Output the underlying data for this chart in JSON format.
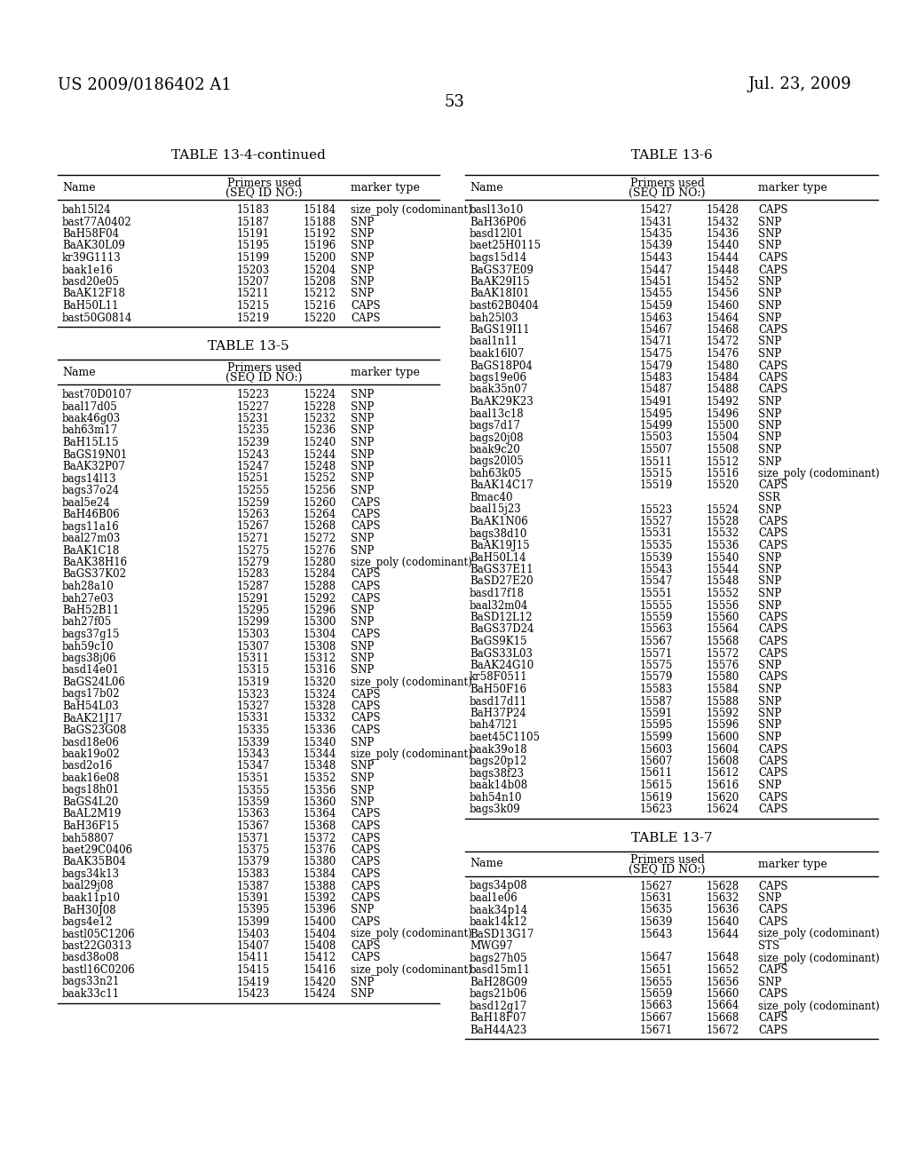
{
  "header_left": "US 2009/0186402 A1",
  "header_right": "Jul. 23, 2009",
  "page_number": "53",
  "table_13_4_continued": {
    "title": "TABLE 13-4-continued",
    "col_headers": [
      "Name",
      "Primers used\n(SEQ ID NO:)",
      "marker type"
    ],
    "rows": [
      [
        "bah15l24",
        "15183",
        "15184",
        "size_poly (codominant)"
      ],
      [
        "bast77A0402",
        "15187",
        "15188",
        "SNP"
      ],
      [
        "BaH58F04",
        "15191",
        "15192",
        "SNP"
      ],
      [
        "BaAK30L09",
        "15195",
        "15196",
        "SNP"
      ],
      [
        "kr39G1113",
        "15199",
        "15200",
        "SNP"
      ],
      [
        "baak1e16",
        "15203",
        "15204",
        "SNP"
      ],
      [
        "basd20e05",
        "15207",
        "15208",
        "SNP"
      ],
      [
        "BaAK12F18",
        "15211",
        "15212",
        "SNP"
      ],
      [
        "BaH50L11",
        "15215",
        "15216",
        "CAPS"
      ],
      [
        "bast50G0814",
        "15219",
        "15220",
        "CAPS"
      ]
    ]
  },
  "table_13_5": {
    "title": "TABLE 13-5",
    "col_headers": [
      "Name",
      "Primers used\n(SEQ ID NO:)",
      "marker type"
    ],
    "rows": [
      [
        "bast70D0107",
        "15223",
        "15224",
        "SNP"
      ],
      [
        "baal17d05",
        "15227",
        "15228",
        "SNP"
      ],
      [
        "baak46g03",
        "15231",
        "15232",
        "SNP"
      ],
      [
        "bah63m17",
        "15235",
        "15236",
        "SNP"
      ],
      [
        "BaH15L15",
        "15239",
        "15240",
        "SNP"
      ],
      [
        "BaGS19N01",
        "15243",
        "15244",
        "SNP"
      ],
      [
        "BaAK32P07",
        "15247",
        "15248",
        "SNP"
      ],
      [
        "bags14l13",
        "15251",
        "15252",
        "SNP"
      ],
      [
        "bags37o24",
        "15255",
        "15256",
        "SNP"
      ],
      [
        "baal5e24",
        "15259",
        "15260",
        "CAPS"
      ],
      [
        "BaH46B06",
        "15263",
        "15264",
        "CAPS"
      ],
      [
        "bags11a16",
        "15267",
        "15268",
        "CAPS"
      ],
      [
        "baal27m03",
        "15271",
        "15272",
        "SNP"
      ],
      [
        "BaAK1C18",
        "15275",
        "15276",
        "SNP"
      ],
      [
        "BaAK38H16",
        "15279",
        "15280",
        "size_poly (codominant)"
      ],
      [
        "BaGS37K02",
        "15283",
        "15284",
        "CAPS"
      ],
      [
        "bah28a10",
        "15287",
        "15288",
        "CAPS"
      ],
      [
        "bah27e03",
        "15291",
        "15292",
        "CAPS"
      ],
      [
        "BaH52B11",
        "15295",
        "15296",
        "SNP"
      ],
      [
        "bah27f05",
        "15299",
        "15300",
        "SNP"
      ],
      [
        "bags37g15",
        "15303",
        "15304",
        "CAPS"
      ],
      [
        "bah59c10",
        "15307",
        "15308",
        "SNP"
      ],
      [
        "bags38j06",
        "15311",
        "15312",
        "SNP"
      ],
      [
        "basd14e01",
        "15315",
        "15316",
        "SNP"
      ],
      [
        "BaGS24L06",
        "15319",
        "15320",
        "size_poly (codominant)"
      ],
      [
        "bags17b02",
        "15323",
        "15324",
        "CAPS"
      ],
      [
        "BaH54L03",
        "15327",
        "15328",
        "CAPS"
      ],
      [
        "BaAK21J17",
        "15331",
        "15332",
        "CAPS"
      ],
      [
        "BaGS23G08",
        "15335",
        "15336",
        "CAPS"
      ],
      [
        "basd18e06",
        "15339",
        "15340",
        "SNP"
      ],
      [
        "baak19o02",
        "15343",
        "15344",
        "size_poly (codominant)"
      ],
      [
        "basd2o16",
        "15347",
        "15348",
        "SNP"
      ],
      [
        "baak16e08",
        "15351",
        "15352",
        "SNP"
      ],
      [
        "bags18h01",
        "15355",
        "15356",
        "SNP"
      ],
      [
        "BaGS4L20",
        "15359",
        "15360",
        "SNP"
      ],
      [
        "BaAL2M19",
        "15363",
        "15364",
        "CAPS"
      ],
      [
        "BaH36F15",
        "15367",
        "15368",
        "CAPS"
      ],
      [
        "bah58807",
        "15371",
        "15372",
        "CAPS"
      ],
      [
        "baet29C0406",
        "15375",
        "15376",
        "CAPS"
      ],
      [
        "BaAK35B04",
        "15379",
        "15380",
        "CAPS"
      ],
      [
        "bags34k13",
        "15383",
        "15384",
        "CAPS"
      ],
      [
        "baal29j08",
        "15387",
        "15388",
        "CAPS"
      ],
      [
        "baak11p10",
        "15391",
        "15392",
        "CAPS"
      ],
      [
        "BaH30J08",
        "15395",
        "15396",
        "SNP"
      ],
      [
        "bags4e12",
        "15399",
        "15400",
        "CAPS"
      ],
      [
        "bastl05C1206",
        "15403",
        "15404",
        "size_poly (codominant)"
      ],
      [
        "bast22G0313",
        "15407",
        "15408",
        "CAPS"
      ],
      [
        "basd38o08",
        "15411",
        "15412",
        "CAPS"
      ],
      [
        "bastl16C0206",
        "15415",
        "15416",
        "size_poly (codominant)"
      ],
      [
        "bags33n21",
        "15419",
        "15420",
        "SNP"
      ],
      [
        "baak33c11",
        "15423",
        "15424",
        "SNP"
      ]
    ]
  },
  "table_13_6": {
    "title": "TABLE 13-6",
    "col_headers": [
      "Name",
      "Primers used\n(SEQ ID NO:)",
      "marker type"
    ],
    "rows": [
      [
        "basl13o10",
        "15427",
        "15428",
        "CAPS"
      ],
      [
        "BaH36P06",
        "15431",
        "15432",
        "SNP"
      ],
      [
        "basd12l01",
        "15435",
        "15436",
        "SNP"
      ],
      [
        "baet25H0115",
        "15439",
        "15440",
        "SNP"
      ],
      [
        "bags15d14",
        "15443",
        "15444",
        "CAPS"
      ],
      [
        "BaGS37E09",
        "15447",
        "15448",
        "CAPS"
      ],
      [
        "BaAK29I15",
        "15451",
        "15452",
        "SNP"
      ],
      [
        "BaAK18I01",
        "15455",
        "15456",
        "SNP"
      ],
      [
        "bast62B0404",
        "15459",
        "15460",
        "SNP"
      ],
      [
        "bah25l03",
        "15463",
        "15464",
        "SNP"
      ],
      [
        "BaGS19I11",
        "15467",
        "15468",
        "CAPS"
      ],
      [
        "baal1n11",
        "15471",
        "15472",
        "SNP"
      ],
      [
        "baak16l07",
        "15475",
        "15476",
        "SNP"
      ],
      [
        "BaGS18P04",
        "15479",
        "15480",
        "CAPS"
      ],
      [
        "bags19e06",
        "15483",
        "15484",
        "CAPS"
      ],
      [
        "baak35n07",
        "15487",
        "15488",
        "CAPS"
      ],
      [
        "BaAK29K23",
        "15491",
        "15492",
        "SNP"
      ],
      [
        "baal13c18",
        "15495",
        "15496",
        "SNP"
      ],
      [
        "bags7d17",
        "15499",
        "15500",
        "SNP"
      ],
      [
        "bags20j08",
        "15503",
        "15504",
        "SNP"
      ],
      [
        "baak9c20",
        "15507",
        "15508",
        "SNP"
      ],
      [
        "bags20l05",
        "15511",
        "15512",
        "SNP"
      ],
      [
        "bah63k05",
        "15515",
        "15516",
        "size_poly (codominant)"
      ],
      [
        "BaAK14C17",
        "15519",
        "15520",
        "CAPS"
      ],
      [
        "Bmac40",
        "",
        "",
        "SSR"
      ],
      [
        "baal15j23",
        "15523",
        "15524",
        "SNP"
      ],
      [
        "BaAK1N06",
        "15527",
        "15528",
        "CAPS"
      ],
      [
        "bags38d10",
        "15531",
        "15532",
        "CAPS"
      ],
      [
        "BaAK19J15",
        "15535",
        "15536",
        "CAPS"
      ],
      [
        "BaH50L14",
        "15539",
        "15540",
        "SNP"
      ],
      [
        "BaGS37E11",
        "15543",
        "15544",
        "SNP"
      ],
      [
        "BaSD27E20",
        "15547",
        "15548",
        "SNP"
      ],
      [
        "basd17f18",
        "15551",
        "15552",
        "SNP"
      ],
      [
        "baal32m04",
        "15555",
        "15556",
        "SNP"
      ],
      [
        "BaSD12L12",
        "15559",
        "15560",
        "CAPS"
      ],
      [
        "BaGS37D24",
        "15563",
        "15564",
        "CAPS"
      ],
      [
        "BaGS9K15",
        "15567",
        "15568",
        "CAPS"
      ],
      [
        "BaGS33L03",
        "15571",
        "15572",
        "CAPS"
      ],
      [
        "BaAK24G10",
        "15575",
        "15576",
        "SNP"
      ],
      [
        "kr58F0511",
        "15579",
        "15580",
        "CAPS"
      ],
      [
        "BaH50F16",
        "15583",
        "15584",
        "SNP"
      ],
      [
        "basd17d11",
        "15587",
        "15588",
        "SNP"
      ],
      [
        "BaH37P24",
        "15591",
        "15592",
        "SNP"
      ],
      [
        "bah47l21",
        "15595",
        "15596",
        "SNP"
      ],
      [
        "baet45C1105",
        "15599",
        "15600",
        "SNP"
      ],
      [
        "baak39o18",
        "15603",
        "15604",
        "CAPS"
      ],
      [
        "bags20p12",
        "15607",
        "15608",
        "CAPS"
      ],
      [
        "bags38f23",
        "15611",
        "15612",
        "CAPS"
      ],
      [
        "baak14b08",
        "15615",
        "15616",
        "SNP"
      ],
      [
        "bah54n10",
        "15619",
        "15620",
        "CAPS"
      ],
      [
        "bags3k09",
        "15623",
        "15624",
        "CAPS"
      ]
    ]
  },
  "table_13_7": {
    "title": "TABLE 13-7",
    "col_headers": [
      "Name",
      "Primers used\n(SEQ ID NO:)",
      "marker type"
    ],
    "rows": [
      [
        "bags34p08",
        "15627",
        "15628",
        "CAPS"
      ],
      [
        "baal1e06",
        "15631",
        "15632",
        "SNP"
      ],
      [
        "baak34p14",
        "15635",
        "15636",
        "CAPS"
      ],
      [
        "baak14k12",
        "15639",
        "15640",
        "CAPS"
      ],
      [
        "BaSD13G17",
        "15643",
        "15644",
        "size_poly (codominant)"
      ],
      [
        "MWG97",
        "",
        "",
        "STS"
      ],
      [
        "bags27h05",
        "15647",
        "15648",
        "size_poly (codominant)"
      ],
      [
        "basd15m11",
        "15651",
        "15652",
        "CAPS"
      ],
      [
        "BaH28G09",
        "15655",
        "15656",
        "SNP"
      ],
      [
        "bags21b06",
        "15659",
        "15660",
        "CAPS"
      ],
      [
        "basd12g17",
        "15663",
        "15664",
        "size_poly (codominant)"
      ],
      [
        "BaH18F07",
        "15667",
        "15668",
        "CAPS"
      ],
      [
        "BaH44A23",
        "15671",
        "15672",
        "CAPS"
      ]
    ]
  }
}
